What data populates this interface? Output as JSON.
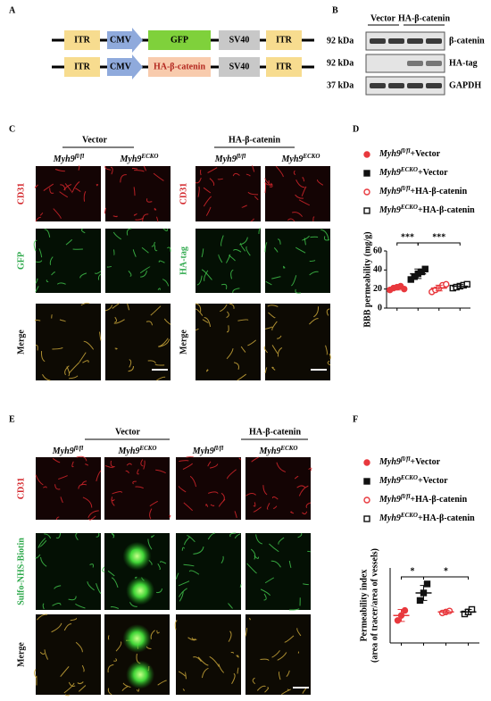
{
  "panel_labels": [
    "A",
    "B",
    "C",
    "D",
    "E",
    "F"
  ],
  "construct": {
    "rows": [
      [
        {
          "label": "ITR",
          "color": "#f7dc8f"
        },
        {
          "label": "CMV",
          "color": "#8faadc"
        },
        {
          "label": "GFP",
          "color": "#7fd13b"
        },
        {
          "label": "SV40",
          "color": "#c8c8c8"
        },
        {
          "label": "ITR",
          "color": "#f7dc8f"
        }
      ],
      [
        {
          "label": "ITR",
          "color": "#f7dc8f"
        },
        {
          "label": "CMV",
          "color": "#8faadc"
        },
        {
          "label": "HA-β-catenin",
          "color": "#f8cbad"
        },
        {
          "label": "SV40",
          "color": "#c8c8c8"
        },
        {
          "label": "ITR",
          "color": "#f7dc8f"
        }
      ]
    ]
  },
  "blot": {
    "lanes": [
      "Vector",
      "HA-β-catenin"
    ],
    "rows": [
      {
        "size": "92 kDa",
        "target": "β-catenin"
      },
      {
        "size": "92 kDa",
        "target": "HA-tag"
      },
      {
        "size": "37 kDa",
        "target": "GAPDH"
      }
    ]
  },
  "genotypes": [
    {
      "gene": "Myh9",
      "sup": "fl/fl"
    },
    {
      "gene": "Myh9",
      "sup": "ECKO"
    }
  ],
  "panel_c": {
    "groups": [
      "Vector",
      "HA-β-catenin"
    ],
    "rows_left": [
      "CD31",
      "GFP",
      "Merge"
    ],
    "rows_right": [
      "CD31",
      "HA-tag",
      "Merge"
    ]
  },
  "panel_e": {
    "groups": [
      "Vector",
      "HA-β-catenin"
    ],
    "rows": [
      "CD31",
      "Sulfo-NHS-Biotin",
      "Merge"
    ]
  },
  "chart_data": [
    {
      "type": "dot",
      "ylabel": "BBB permeability (mg/g)",
      "ylim": [
        0,
        60
      ],
      "yticks": [
        0,
        20,
        40,
        60
      ],
      "annotations": [
        "***",
        "***"
      ],
      "series": [
        {
          "name": {
            "gene": "Myh9",
            "sup": "fl/fl",
            "rest": "+Vector"
          },
          "color": "#e8383d",
          "marker": "circle",
          "filled": true,
          "values": [
            21
          ],
          "errors": [
            2
          ],
          "points": [
            [
              19,
              21,
              22,
              23,
              20
            ]
          ]
        },
        {
          "name": {
            "gene": "Myh9",
            "sup": "ECKO",
            "rest": "+Vector"
          },
          "color": "#111111",
          "marker": "square",
          "filled": true,
          "values": [
            36
          ],
          "errors": [
            5
          ],
          "points": [
            [
              30,
              33,
              36,
              38,
              41
            ]
          ]
        },
        {
          "name": {
            "gene": "Myh9",
            "sup": "fl/fl",
            "rest": "+HA-β-catenin"
          },
          "color": "#e8383d",
          "marker": "circle",
          "filled": false,
          "values": [
            21
          ],
          "errors": [
            3
          ],
          "points": [
            [
              17,
              19,
              21,
              24,
              25
            ]
          ]
        },
        {
          "name": {
            "gene": "Myh9",
            "sup": "ECKO",
            "rest": "+HA-β-catenin"
          },
          "color": "#111111",
          "marker": "square",
          "filled": false,
          "values": [
            23
          ],
          "errors": [
            2
          ],
          "points": [
            [
              21,
              22,
              23,
              24,
              25
            ]
          ]
        }
      ]
    },
    {
      "type": "dot",
      "ylabel": [
        "Permeability index",
        "(area of tracer/area of vessels)"
      ],
      "ylim": [
        0.5,
        2.0
      ],
      "annotations": [
        "*",
        "*"
      ],
      "series": [
        {
          "name": {
            "gene": "Myh9",
            "sup": "fl/fl",
            "rest": "+Vector"
          },
          "color": "#e8383d",
          "marker": "circle",
          "filled": true,
          "values": [
            1.05
          ],
          "errors": [
            0.12
          ],
          "points": [
            [
              0.95,
              1.05,
              1.15
            ]
          ]
        },
        {
          "name": {
            "gene": "Myh9",
            "sup": "ECKO",
            "rest": "+Vector"
          },
          "color": "#111111",
          "marker": "square",
          "filled": true,
          "values": [
            1.5
          ],
          "errors": [
            0.15
          ],
          "points": [
            [
              1.35,
              1.5,
              1.68
            ]
          ]
        },
        {
          "name": {
            "gene": "Myh9",
            "sup": "fl/fl",
            "rest": "+HA-β-catenin"
          },
          "color": "#e8383d",
          "marker": "circle",
          "filled": false,
          "values": [
            1.12
          ],
          "errors": [
            0.03
          ],
          "points": [
            [
              1.1,
              1.12,
              1.14
            ]
          ]
        },
        {
          "name": {
            "gene": "Myh9",
            "sup": "ECKO",
            "rest": "+HA-β-catenin"
          },
          "color": "#111111",
          "marker": "square",
          "filled": false,
          "values": [
            1.12
          ],
          "errors": [
            0.05
          ],
          "points": [
            [
              1.08,
              1.12,
              1.17
            ]
          ]
        }
      ]
    }
  ]
}
